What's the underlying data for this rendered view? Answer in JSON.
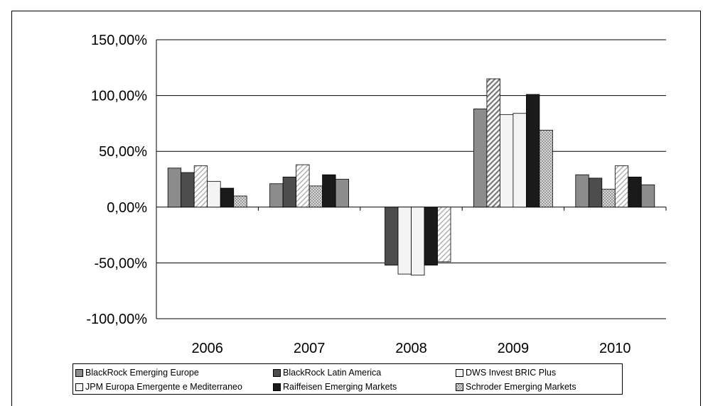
{
  "chart_data": {
    "type": "bar",
    "title": "",
    "xlabel": "",
    "ylabel": "",
    "categories": [
      "2006",
      "2007",
      "2008",
      "2009",
      "2010"
    ],
    "ylim": [
      -100,
      150
    ],
    "y_ticks": [
      150,
      100,
      50,
      0,
      -50,
      -100
    ],
    "y_tick_labels": [
      "150,00%",
      "100,00%",
      "50,00%",
      "0,00%",
      "-50,00%",
      "-100,00%"
    ],
    "grid": true,
    "legend_position": "bottom",
    "series": [
      {
        "name": "BlackRock Emerging Europe",
        "values": [
          35,
          21,
          null,
          88,
          29
        ]
      },
      {
        "name": "BlackRock Latin America",
        "values": [
          31,
          27,
          -52,
          115,
          26
        ]
      },
      {
        "name": "DWS Invest BRIC Plus",
        "values": [
          37,
          38,
          -60,
          83,
          16
        ]
      },
      {
        "name": "JPM Europa Emergente e Mediterraneo",
        "values": [
          23,
          19,
          -61,
          84,
          37
        ]
      },
      {
        "name": "Raiffeisen Emerging Markets",
        "values": [
          17,
          29,
          -52,
          101,
          27
        ]
      },
      {
        "name": "Schroder Emerging Markets",
        "values": [
          10,
          25,
          -49,
          69,
          20
        ]
      }
    ],
    "bar_styles": [
      [
        "gray",
        "dark",
        "lightstripe",
        "white",
        "black",
        "checker"
      ],
      [
        "gray",
        "dark",
        "lightstripe",
        "checker",
        "black",
        "gray"
      ],
      [
        "checker",
        "dark",
        "white",
        "white",
        "black",
        "lightstripe"
      ],
      [
        "gray",
        "stripe",
        "white",
        "white",
        "black",
        "checker"
      ],
      [
        "gray",
        "dark",
        "checker",
        "lightstripe",
        "black",
        "gray"
      ]
    ],
    "legend_styles": [
      "gray",
      "dark",
      "white",
      "white",
      "black",
      "checker"
    ]
  }
}
